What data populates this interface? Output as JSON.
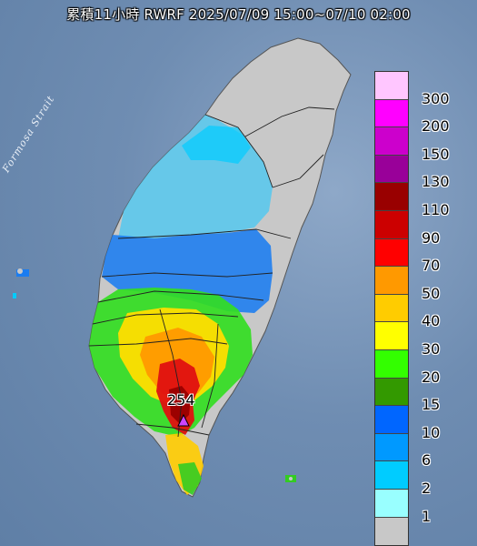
{
  "title": "累積11小時 RWRF 2025/07/09 15:00~07/10 02:00",
  "strait_label": "Formosa Strait",
  "legend": {
    "labels": [
      "300",
      "200",
      "150",
      "130",
      "110",
      "90",
      "70",
      "50",
      "40",
      "30",
      "20",
      "15",
      "10",
      "6",
      "2",
      "1"
    ],
    "colors": [
      "#ffc6ff",
      "#ff00ff",
      "#cc00cc",
      "#990099",
      "#990000",
      "#cc0000",
      "#ff0000",
      "#ff9900",
      "#ffcc00",
      "#ffff00",
      "#33ff00",
      "#339900",
      "#0066ff",
      "#0099ff",
      "#00ccff",
      "#99ffff",
      "#c8c8c8"
    ]
  },
  "max_value_label": "254",
  "max_marker": "triangle-marker"
}
